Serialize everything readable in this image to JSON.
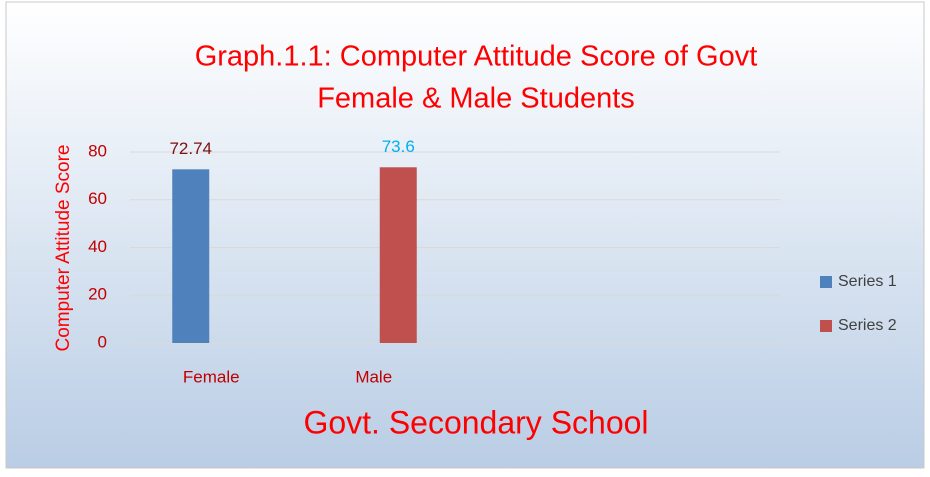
{
  "chart_data": {
    "type": "bar",
    "title": [
      "Graph.1.1: Computer Attitude Score of Govt",
      "Female &  Male Students"
    ],
    "categories": [
      "Female",
      "Male",
      null,
      null
    ],
    "series": [
      {
        "name": "Series 1",
        "color": "#4f81bd",
        "label_color": "#7f1010",
        "values": [
          72.74,
          null,
          null,
          null
        ]
      },
      {
        "name": "Series 2",
        "color": "#c0504d",
        "label_color": "#00b0f0",
        "values": [
          null,
          73.6,
          null,
          null
        ]
      }
    ],
    "xlabel": "Govt. Secondary School",
    "ylabel": "Computer Attitude Score",
    "ylim": [
      0,
      80
    ],
    "yticks": [
      0,
      20,
      40,
      60,
      80
    ],
    "grid": true,
    "legend": "right"
  }
}
